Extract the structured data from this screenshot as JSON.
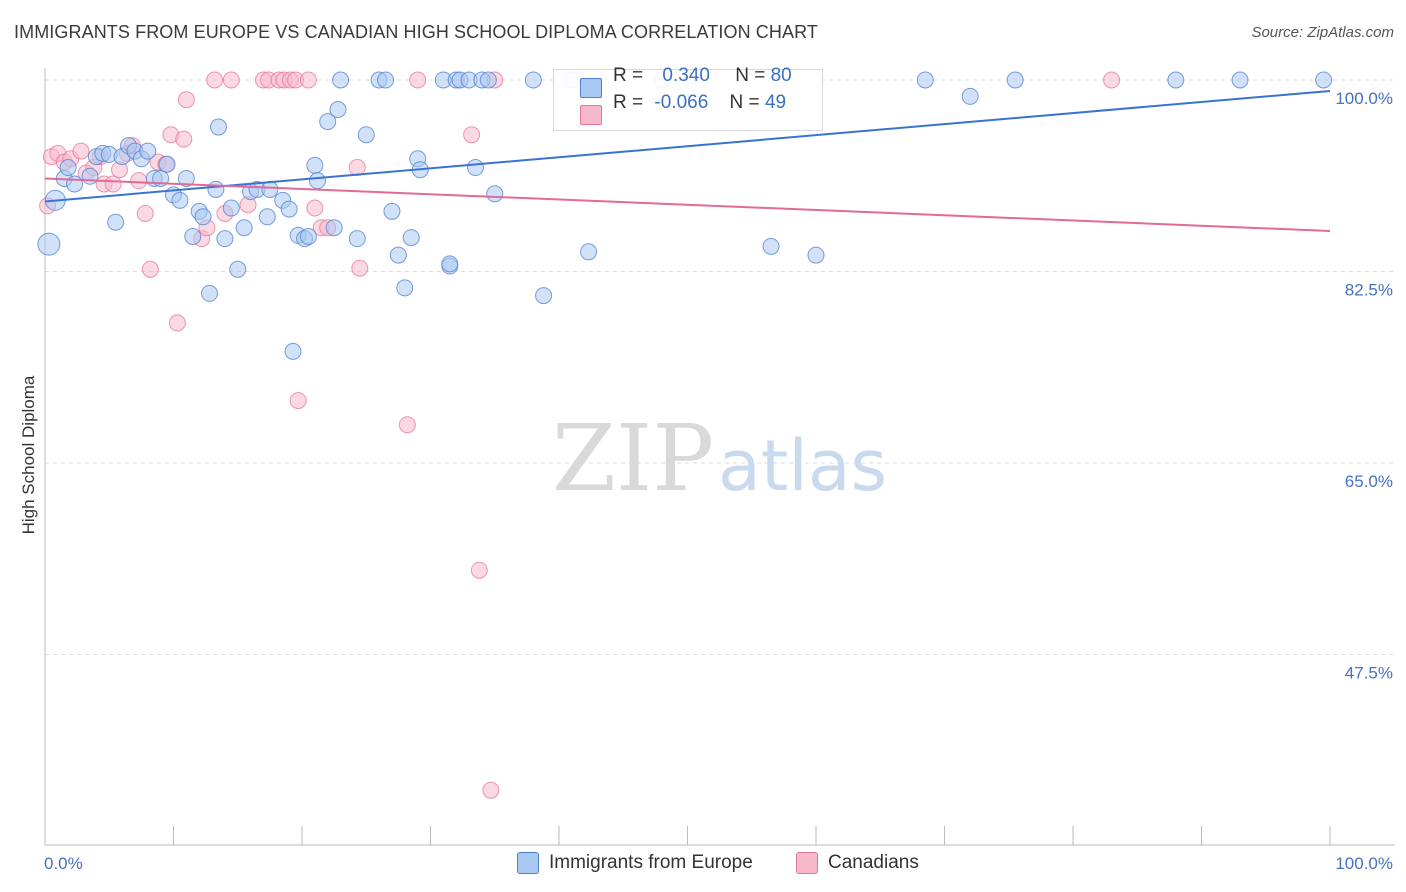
{
  "title": "IMMIGRANTS FROM EUROPE VS CANADIAN HIGH SCHOOL DIPLOMA CORRELATION CHART",
  "source": "Source: ZipAtlas.com",
  "watermark": {
    "zip": "ZIP",
    "atlas": "atlas"
  },
  "legend": {
    "blue": {
      "r_label": "R =",
      "r_value": "0.340",
      "n_label": "N =",
      "n_value": "80",
      "color": "#a9c8f2"
    },
    "pink": {
      "r_label": "R =",
      "r_value": "-0.066",
      "n_label": "N =",
      "n_value": "49",
      "color": "#f6b9cc"
    }
  },
  "bottom_legend": {
    "blue_label": "Immigrants from Europe",
    "pink_label": "Canadians"
  },
  "chart_data": {
    "type": "scatter",
    "title": "IMMIGRANTS FROM EUROPE VS CANADIAN HIGH SCHOOL DIPLOMA CORRELATION CHART",
    "xlabel": "",
    "ylabel": "High School Diploma",
    "xlim": [
      0,
      100
    ],
    "ylim": [
      29.5,
      102
    ],
    "x_tick_labels": [
      "0.0%",
      "100.0%"
    ],
    "y_tick_labels": [
      "100.0%",
      "82.5%",
      "65.0%",
      "47.5%"
    ],
    "y_ticks": [
      100,
      82.5,
      65,
      47.5
    ],
    "grid": true,
    "series": [
      {
        "name": "Immigrants from Europe",
        "color": "#4e7fd0",
        "fill": "#a9c8f2",
        "trend": {
          "x0": 0,
          "y0": 88.9,
          "x1": 100,
          "y1": 99.0
        },
        "points": [
          [
            0.3,
            85.0
          ],
          [
            0.8,
            89.0
          ],
          [
            1.5,
            91.0
          ],
          [
            1.8,
            92.0
          ],
          [
            2.3,
            90.5
          ],
          [
            3.5,
            91.2
          ],
          [
            4.0,
            93.0
          ],
          [
            4.5,
            93.3
          ],
          [
            5.0,
            93.2
          ],
          [
            5.5,
            87.0
          ],
          [
            6.0,
            93.0
          ],
          [
            6.5,
            94.0
          ],
          [
            7.0,
            93.5
          ],
          [
            7.5,
            92.8
          ],
          [
            8.0,
            93.5
          ],
          [
            8.5,
            91.0
          ],
          [
            9.0,
            91.0
          ],
          [
            9.5,
            92.3
          ],
          [
            10.0,
            89.5
          ],
          [
            10.5,
            89.0
          ],
          [
            11.0,
            91.0
          ],
          [
            11.5,
            85.7
          ],
          [
            12.0,
            88.0
          ],
          [
            12.3,
            87.5
          ],
          [
            12.8,
            80.5
          ],
          [
            13.3,
            90.0
          ],
          [
            13.5,
            95.7
          ],
          [
            14.0,
            85.5
          ],
          [
            14.5,
            88.3
          ],
          [
            15.0,
            82.7
          ],
          [
            15.5,
            86.5
          ],
          [
            16.0,
            89.8
          ],
          [
            16.5,
            90.0
          ],
          [
            17.3,
            87.5
          ],
          [
            17.5,
            90.0
          ],
          [
            18.5,
            89.0
          ],
          [
            19.0,
            88.2
          ],
          [
            19.3,
            75.2
          ],
          [
            19.7,
            85.8
          ],
          [
            20.2,
            85.5
          ],
          [
            20.5,
            85.7
          ],
          [
            21.0,
            92.2
          ],
          [
            21.2,
            90.8
          ],
          [
            22.0,
            96.2
          ],
          [
            22.5,
            86.5
          ],
          [
            22.8,
            97.3
          ],
          [
            23.0,
            100.0
          ],
          [
            24.3,
            85.5
          ],
          [
            25.0,
            95.0
          ],
          [
            26.0,
            100.0
          ],
          [
            26.5,
            100.0
          ],
          [
            27.0,
            88.0
          ],
          [
            27.5,
            84.0
          ],
          [
            28.0,
            81.0
          ],
          [
            28.5,
            85.6
          ],
          [
            29.0,
            92.8
          ],
          [
            29.2,
            91.8
          ],
          [
            31.0,
            100.0
          ],
          [
            31.5,
            83.0
          ],
          [
            31.5,
            83.2
          ],
          [
            32.0,
            100.0
          ],
          [
            32.3,
            100.0
          ],
          [
            33.0,
            100.0
          ],
          [
            33.5,
            92.0
          ],
          [
            34.0,
            100.0
          ],
          [
            34.5,
            100.0
          ],
          [
            35.0,
            89.6
          ],
          [
            38.0,
            100.0
          ],
          [
            38.8,
            80.3
          ],
          [
            41.0,
            100.0
          ],
          [
            42.3,
            84.3
          ],
          [
            48.0,
            100.0
          ],
          [
            56.5,
            84.8
          ],
          [
            60.0,
            84.0
          ],
          [
            68.5,
            100.0
          ],
          [
            72.0,
            98.5
          ],
          [
            75.5,
            100.0
          ],
          [
            88.0,
            100.0
          ],
          [
            93.0,
            100.0
          ],
          [
            99.5,
            100.0
          ]
        ]
      },
      {
        "name": "Canadians",
        "color": "#e8759a",
        "fill": "#f6b9cc",
        "trend": {
          "x0": 0,
          "y0": 91.0,
          "x1": 100,
          "y1": 86.2
        },
        "points": [
          [
            0.2,
            88.5
          ],
          [
            0.5,
            93.0
          ],
          [
            1.0,
            93.3
          ],
          [
            1.5,
            92.5
          ],
          [
            2.0,
            92.8
          ],
          [
            2.8,
            93.5
          ],
          [
            3.2,
            91.5
          ],
          [
            3.8,
            92.0
          ],
          [
            4.3,
            93.0
          ],
          [
            4.6,
            90.5
          ],
          [
            5.3,
            90.5
          ],
          [
            5.8,
            91.8
          ],
          [
            6.4,
            93.3
          ],
          [
            6.8,
            94.0
          ],
          [
            7.3,
            90.8
          ],
          [
            7.8,
            87.8
          ],
          [
            8.2,
            82.7
          ],
          [
            8.8,
            92.5
          ],
          [
            9.4,
            92.3
          ],
          [
            9.8,
            95.0
          ],
          [
            10.3,
            77.8
          ],
          [
            10.8,
            94.6
          ],
          [
            11.0,
            98.2
          ],
          [
            12.2,
            85.5
          ],
          [
            12.6,
            86.5
          ],
          [
            13.2,
            100.0
          ],
          [
            14.0,
            87.8
          ],
          [
            14.5,
            100.0
          ],
          [
            15.8,
            88.6
          ],
          [
            17.0,
            100.0
          ],
          [
            17.4,
            100.0
          ],
          [
            18.2,
            100.0
          ],
          [
            18.6,
            100.0
          ],
          [
            19.1,
            100.0
          ],
          [
            19.5,
            100.0
          ],
          [
            19.7,
            70.7
          ],
          [
            20.5,
            100.0
          ],
          [
            21.0,
            88.3
          ],
          [
            21.5,
            86.5
          ],
          [
            22.0,
            86.5
          ],
          [
            24.5,
            82.8
          ],
          [
            24.3,
            92.0
          ],
          [
            28.2,
            68.5
          ],
          [
            29.0,
            100.0
          ],
          [
            33.2,
            95.0
          ],
          [
            33.8,
            55.2
          ],
          [
            34.7,
            35.1
          ],
          [
            35.0,
            100.0
          ],
          [
            83.0,
            100.0
          ]
        ]
      }
    ]
  }
}
